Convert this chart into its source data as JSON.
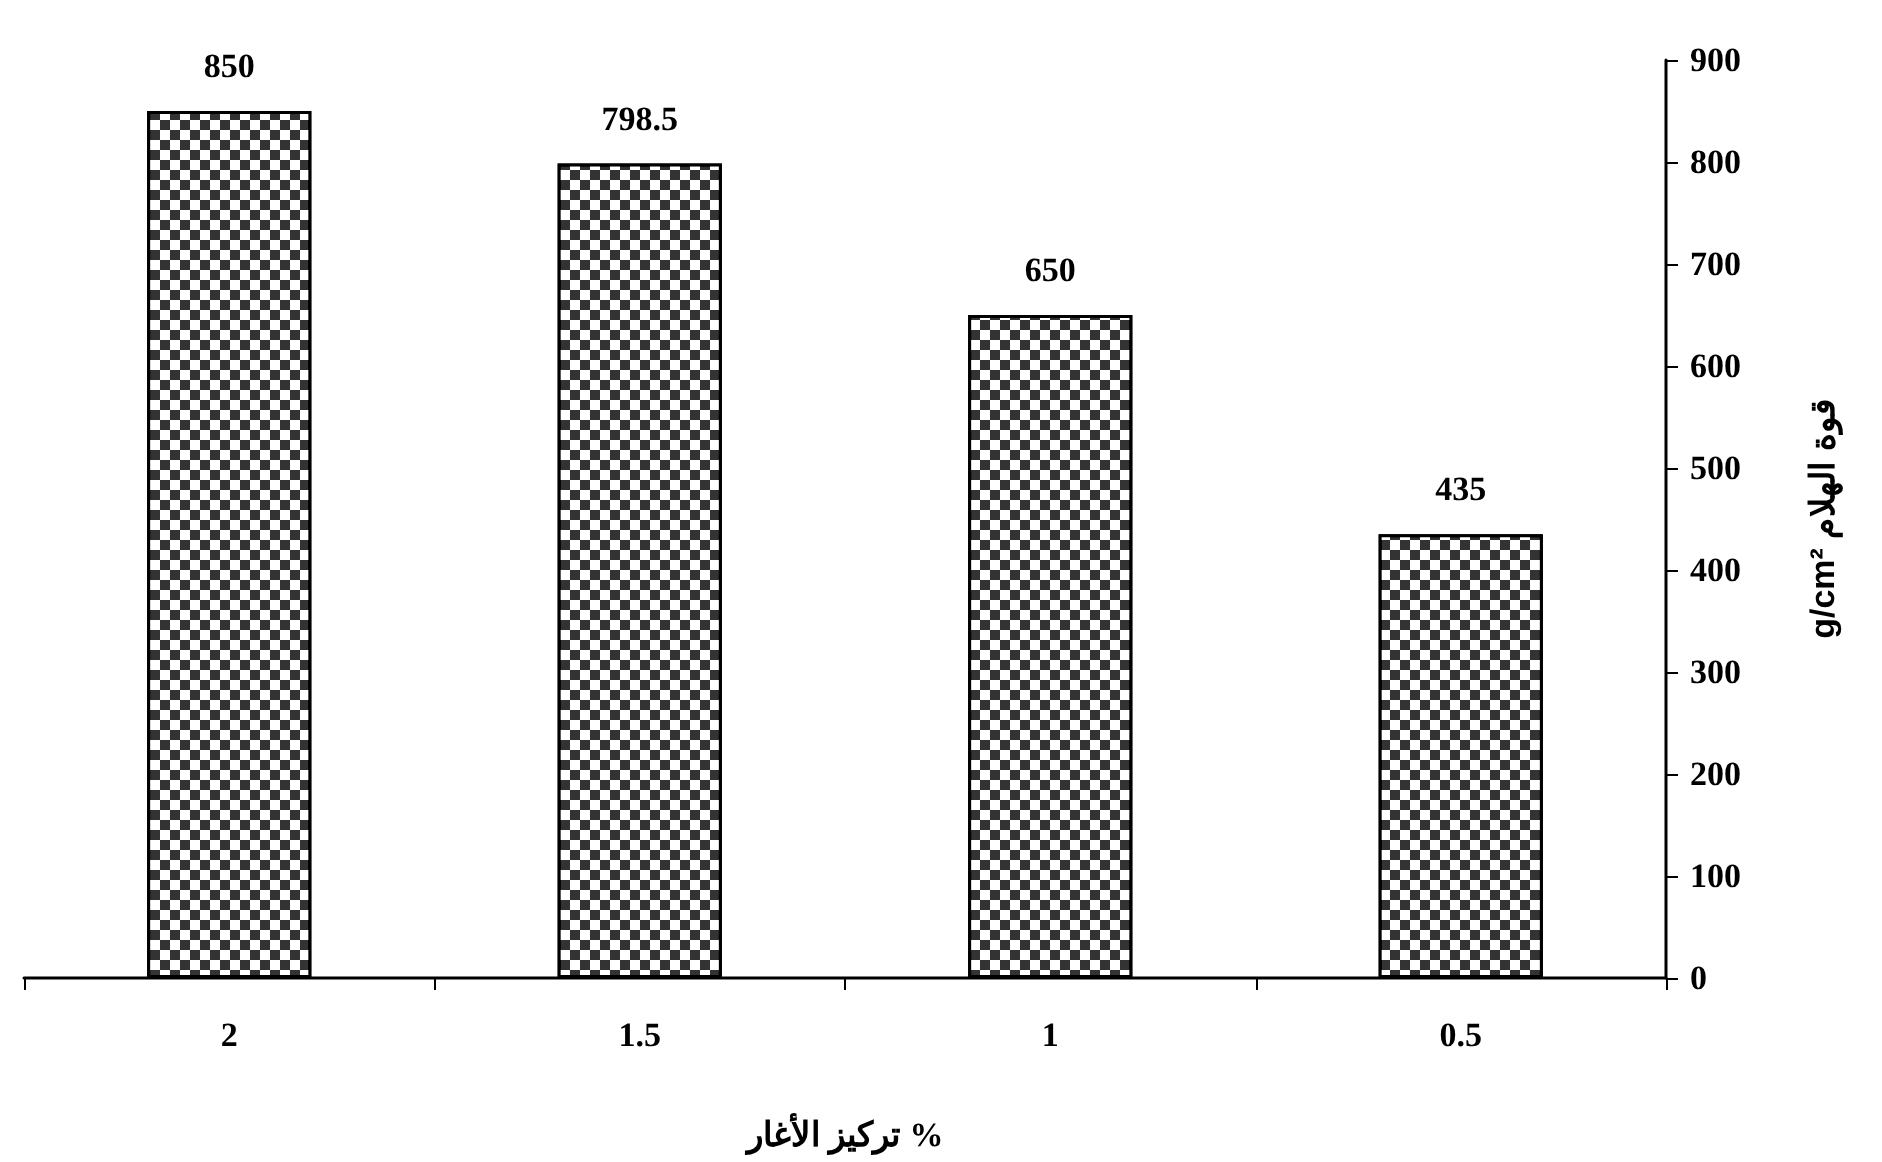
{
  "chart_data": {
    "type": "bar",
    "xlabel": "تركيز الأغار %",
    "ylabel": "g/cm² قوة الهلام",
    "categories": [
      "2",
      "1.5",
      "1",
      "0.5"
    ],
    "values": [
      850,
      798.5,
      650,
      435
    ],
    "color": "#333333",
    "ylim": [
      0,
      900
    ],
    "yticks": [
      0,
      100,
      200,
      300,
      400,
      500,
      600,
      700,
      800,
      900
    ],
    "grid": false,
    "data_labels": true
  }
}
